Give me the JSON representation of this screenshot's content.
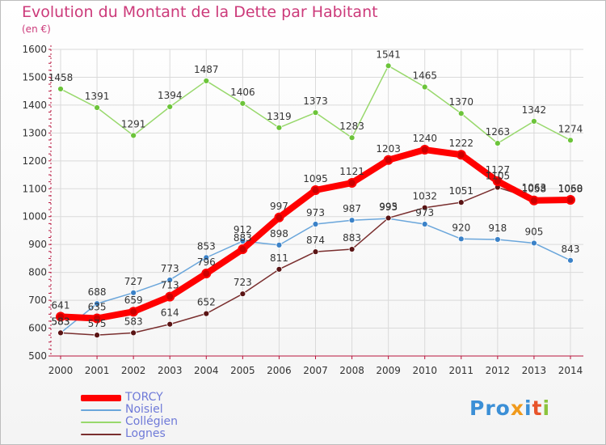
{
  "title": "Evolution du Montant de la Dette par Habitant",
  "subtitle": "(en €)",
  "logo": {
    "brand_name": "Proxiti",
    "parts": [
      "Pro",
      "x",
      "i",
      "t",
      "i"
    ]
  },
  "colors": {
    "title": "#cc3a7a",
    "axis": "#b8143c",
    "grid": "#dadada",
    "legend_text": "#6f7ad8"
  },
  "chart_data": {
    "type": "line",
    "title": "Evolution du Montant de la Dette par Habitant",
    "subtitle": "(en €)",
    "xlabel": "",
    "ylabel": "",
    "ylim": [
      500,
      1600
    ],
    "yticks": [
      500,
      600,
      700,
      800,
      900,
      1000,
      1100,
      1200,
      1300,
      1400,
      1500,
      1600
    ],
    "grid": true,
    "legend_position": "bottom-left",
    "categories": [
      "2000",
      "2001",
      "2002",
      "2003",
      "2004",
      "2005",
      "2006",
      "2007",
      "2008",
      "2009",
      "2010",
      "2011",
      "2012",
      "2013",
      "2014"
    ],
    "series": [
      {
        "name": "TORCY",
        "color": "#ff0000",
        "marker_color": "#cc0000",
        "bold": true,
        "values": [
          641,
          635,
          659,
          713,
          796,
          883,
          997,
          1095,
          1121,
          1203,
          1240,
          1222,
          1127,
          1058,
          1060
        ],
        "labels": [
          "641",
          "635",
          "659",
          "713",
          "796",
          "883",
          "997",
          "1095",
          "1121",
          "1203",
          "1240",
          "1222",
          "1127",
          "1058",
          "1060"
        ]
      },
      {
        "name": "Noisiel",
        "color": "#6aa6db",
        "marker_color": "#3b82c8",
        "values": [
          583,
          688,
          727,
          773,
          853,
          912,
          898,
          973,
          987,
          993,
          973,
          920,
          918,
          905,
          843
        ],
        "labels": [
          "583",
          "688",
          "727",
          "773",
          "853",
          "912",
          "898",
          "973",
          "987",
          "993",
          "973",
          "920",
          "918",
          "905",
          "843"
        ]
      },
      {
        "name": "Collégien",
        "color": "#98d86c",
        "marker_color": "#6cc43a",
        "values": [
          1458,
          1391,
          1291,
          1394,
          1487,
          1406,
          1319,
          1373,
          1283,
          1541,
          1465,
          1370,
          1263,
          1342,
          1274
        ],
        "labels": [
          "1458",
          "1391",
          "1291",
          "1394",
          "1487",
          "1406",
          "1319",
          "1373",
          "1283",
          "1541",
          "1465",
          "1370",
          "1263",
          "1342",
          "1274"
        ]
      },
      {
        "name": "Lognes",
        "color": "#7a2f2f",
        "marker_color": "#5a1414",
        "values": [
          583,
          575,
          583,
          614,
          652,
          723,
          811,
          874,
          883,
          995,
          1032,
          1051,
          1105,
          1063,
          1058
        ],
        "labels": [
          "583",
          "575",
          "583",
          "614",
          "652",
          "723",
          "811",
          "874",
          "883",
          "995",
          "1032",
          "1051",
          "1105",
          "1063",
          "1058"
        ]
      }
    ]
  }
}
